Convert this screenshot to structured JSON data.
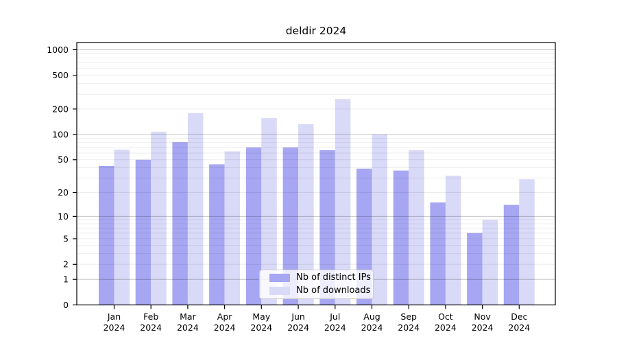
{
  "chart_data": {
    "type": "bar",
    "title": "deldir 2024",
    "categories": [
      "Jan",
      "Feb",
      "Mar",
      "Apr",
      "May",
      "Jun",
      "Jul",
      "Aug",
      "Sep",
      "Oct",
      "Nov",
      "Dec"
    ],
    "year_label": "2024",
    "series": [
      {
        "name": "Nb of distinct IPs",
        "color": "#a6a6f2",
        "values": [
          42,
          50,
          81,
          44,
          70,
          70,
          65,
          39,
          37,
          15,
          6,
          14
        ]
      },
      {
        "name": "Nb of downloads",
        "color": "#d9d9f8",
        "values": [
          66,
          108,
          179,
          63,
          156,
          132,
          262,
          100,
          65,
          32,
          9,
          29
        ]
      }
    ],
    "y_axis": {
      "scale": "log10(1+x)",
      "tick_labels": [
        0,
        1,
        2,
        5,
        10,
        20,
        50,
        100,
        200,
        500,
        1000
      ],
      "major_gridlines": [
        1,
        10,
        100,
        1000
      ],
      "minor_gridlines": [
        2,
        3,
        4,
        5,
        6,
        7,
        8,
        9,
        20,
        30,
        40,
        50,
        60,
        70,
        80,
        90,
        200,
        300,
        400,
        500,
        600,
        700,
        800,
        900
      ],
      "ylim": [
        0,
        1400
      ]
    },
    "xlabel": "",
    "ylabel": "",
    "legend_position": "bottom-center",
    "grid": true
  },
  "colors": {
    "bar_ips": "#a6a6f2",
    "bar_downloads": "#d9d9f8",
    "grid_major": "rgba(0,0,0,0.22)",
    "grid_minor": "rgba(0,0,0,0.075)",
    "frame": "#000000",
    "text": "#000000",
    "legend_border": "#cccccc"
  }
}
